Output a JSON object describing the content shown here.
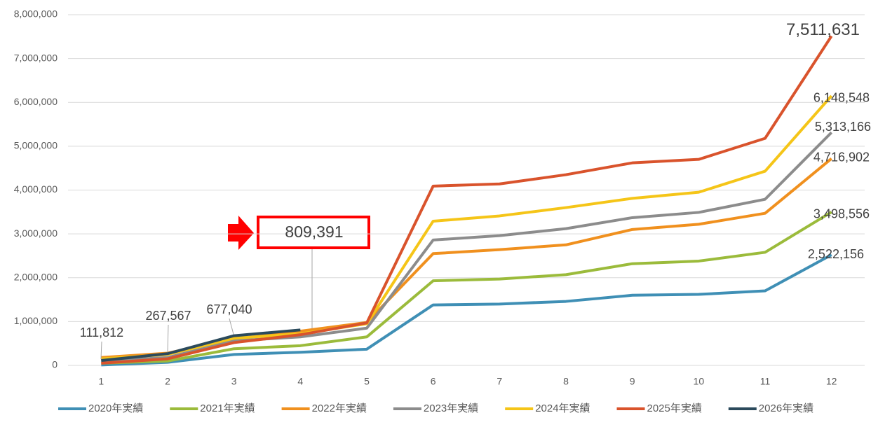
{
  "chart_data": {
    "type": "line",
    "categories": [
      "1",
      "2",
      "3",
      "4",
      "5",
      "6",
      "7",
      "8",
      "9",
      "10",
      "11",
      "12"
    ],
    "ylim": [
      0,
      8000000
    ],
    "yticks": [
      0,
      {
        "value": 1000000,
        "label": "1,000,000"
      },
      {
        "value": 2000000,
        "label": "2,000,000"
      },
      {
        "value": 3000000,
        "label": "3,000,000"
      },
      {
        "value": 4000000,
        "label": "4,000,000"
      },
      {
        "value": 5000000,
        "label": "5,000,000"
      },
      {
        "value": 6000000,
        "label": "6,000,000"
      },
      {
        "value": 7000000,
        "label": "7,000,000"
      },
      {
        "value": 8000000,
        "label": "8,000,000"
      }
    ],
    "grid": true,
    "legend": "bottom",
    "series": [
      {
        "name": "2020年実績",
        "color": "#3f8fb5",
        "values": [
          10000,
          70000,
          250000,
          300000,
          370000,
          1380000,
          1400000,
          1460000,
          1600000,
          1620000,
          1700000,
          2522156
        ],
        "value_labels": [
          null,
          null,
          null,
          null,
          null,
          null,
          null,
          null,
          null,
          null,
          null,
          "2,522,156"
        ]
      },
      {
        "name": "2021年実績",
        "color": "#9bbb3b",
        "values": [
          50000,
          100000,
          380000,
          450000,
          650000,
          1930000,
          1970000,
          2070000,
          2320000,
          2380000,
          2580000,
          3498556
        ],
        "value_labels": [
          null,
          null,
          null,
          null,
          null,
          null,
          null,
          null,
          null,
          null,
          null,
          "3,498,556"
        ]
      },
      {
        "name": "2022年実績",
        "color": "#f0901e",
        "values": [
          180000,
          280000,
          600000,
          780000,
          980000,
          2550000,
          2640000,
          2750000,
          3100000,
          3220000,
          3470000,
          4716902
        ],
        "value_labels": [
          null,
          null,
          null,
          null,
          null,
          null,
          null,
          null,
          null,
          null,
          null,
          "4,716,902"
        ]
      },
      {
        "name": "2023年実績",
        "color": "#8c8c8c",
        "values": [
          100000,
          180000,
          560000,
          650000,
          850000,
          2860000,
          2960000,
          3120000,
          3370000,
          3490000,
          3790000,
          5313166
        ],
        "value_labels": [
          null,
          null,
          null,
          null,
          null,
          null,
          null,
          null,
          null,
          null,
          null,
          "5,313,166"
        ]
      },
      {
        "name": "2024年実績",
        "color": "#f5c518",
        "values": [
          150000,
          250000,
          620000,
          720000,
          950000,
          3290000,
          3410000,
          3600000,
          3810000,
          3950000,
          4430000,
          6148548
        ],
        "value_labels": [
          null,
          null,
          null,
          null,
          null,
          null,
          null,
          null,
          null,
          null,
          null,
          "6,148,548"
        ]
      },
      {
        "name": "2025年実績",
        "color": "#d9532c",
        "values": [
          50000,
          150000,
          520000,
          700000,
          970000,
          4090000,
          4140000,
          4350000,
          4620000,
          4700000,
          5180000,
          7511631
        ],
        "value_labels": [
          null,
          null,
          null,
          null,
          null,
          null,
          null,
          null,
          null,
          null,
          null,
          "7,511,631"
        ]
      },
      {
        "name": "2026年実績",
        "color": "#2b4a5c",
        "values": [
          111812,
          267567,
          677040,
          809391,
          null,
          null,
          null,
          null,
          null,
          null,
          null,
          null
        ],
        "value_labels": [
          "111,812",
          "267,567",
          "677,040",
          "809,391",
          null,
          null,
          null,
          null,
          null,
          null,
          null,
          null
        ]
      }
    ]
  }
}
